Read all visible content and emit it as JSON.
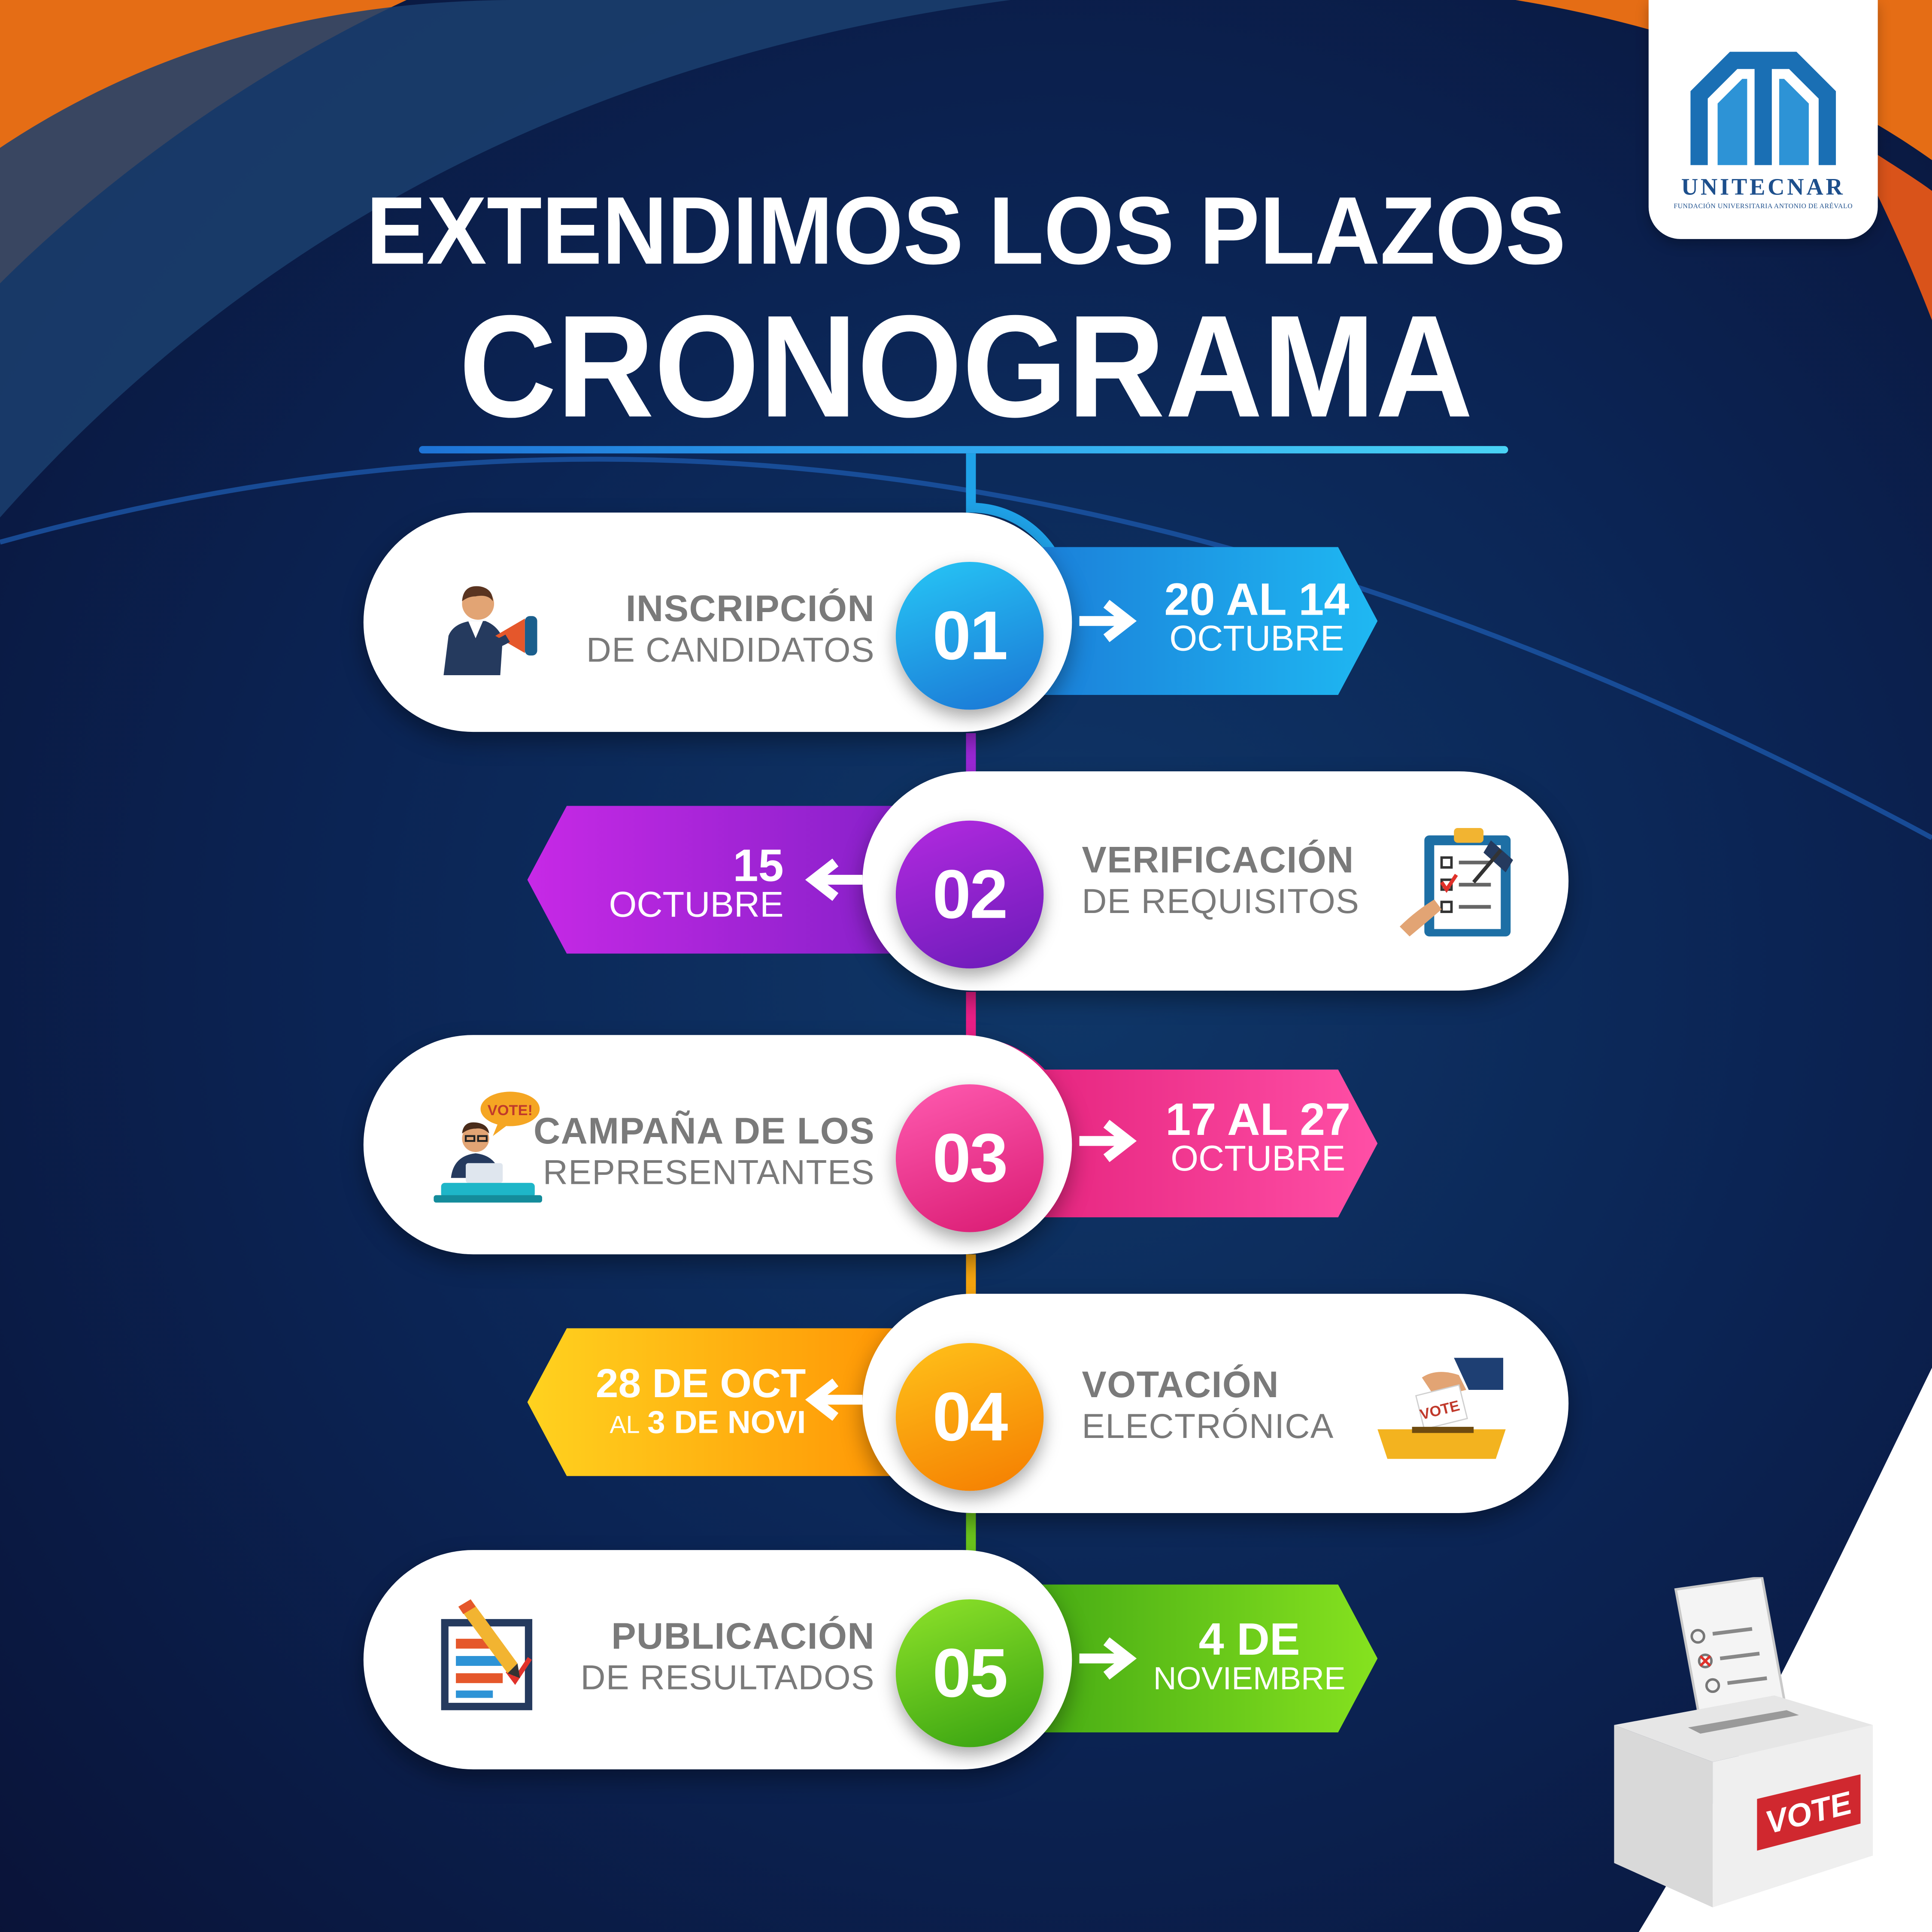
{
  "header": {
    "title_line1": "EXTENDIMOS LOS PLAZOS",
    "title_line2": "CRONOGRAMA"
  },
  "logo": {
    "name": "UNITECNAR",
    "subtitle": "FUNDACIÓN UNIVERSITARIA ANTONIO DE ARÉVALO"
  },
  "steps": [
    {
      "number": "01",
      "label_bold": "INSCRIPCIÓN",
      "label_rest": "DE CANDIDATOS",
      "date_main": "20 AL 14",
      "date_sub": "OCTUBRE",
      "icon": "megaphone-speaker-icon",
      "colors": [
        "#1fb8f2",
        "#1a74d4"
      ]
    },
    {
      "number": "02",
      "label_bold": "VERIFICACIÓN",
      "label_rest": "DE REQUISITOS",
      "date_main": "15",
      "date_sub": "OCTUBRE",
      "icon": "clipboard-checklist-icon",
      "colors": [
        "#c729e6",
        "#7b1fc4"
      ]
    },
    {
      "number": "03",
      "label_bold": "CAMPAÑA DE LOS",
      "label_rest": "REPRESENTANTES",
      "date_main": "17 AL 27",
      "date_sub": "OCTUBRE",
      "icon": "speaker-podium-icon",
      "colors": [
        "#ff4fa6",
        "#e11d78"
      ]
    },
    {
      "number": "04",
      "label_bold": "VOTACIÓN",
      "label_rest": "ELECTRÓNICA",
      "date_main": "28 DE OCT",
      "date_sub_small": "AL",
      "date_sub_bold": "3 DE NOVI",
      "icon": "ballot-box-hand-icon",
      "colors": [
        "#ffd21f",
        "#ff8a00"
      ]
    },
    {
      "number": "05",
      "label_bold": "PUBLICACIÓN",
      "label_rest": "DE RESULTADOS",
      "date_main": "4 DE",
      "date_sub": "NOVIEMBRE",
      "icon": "results-document-icon",
      "colors": [
        "#86e21f",
        "#3aa012"
      ]
    }
  ],
  "decor": {
    "vote_label": "VOTE",
    "vote_bubble": "VOTE!",
    "ballot_label": "VOTE"
  }
}
